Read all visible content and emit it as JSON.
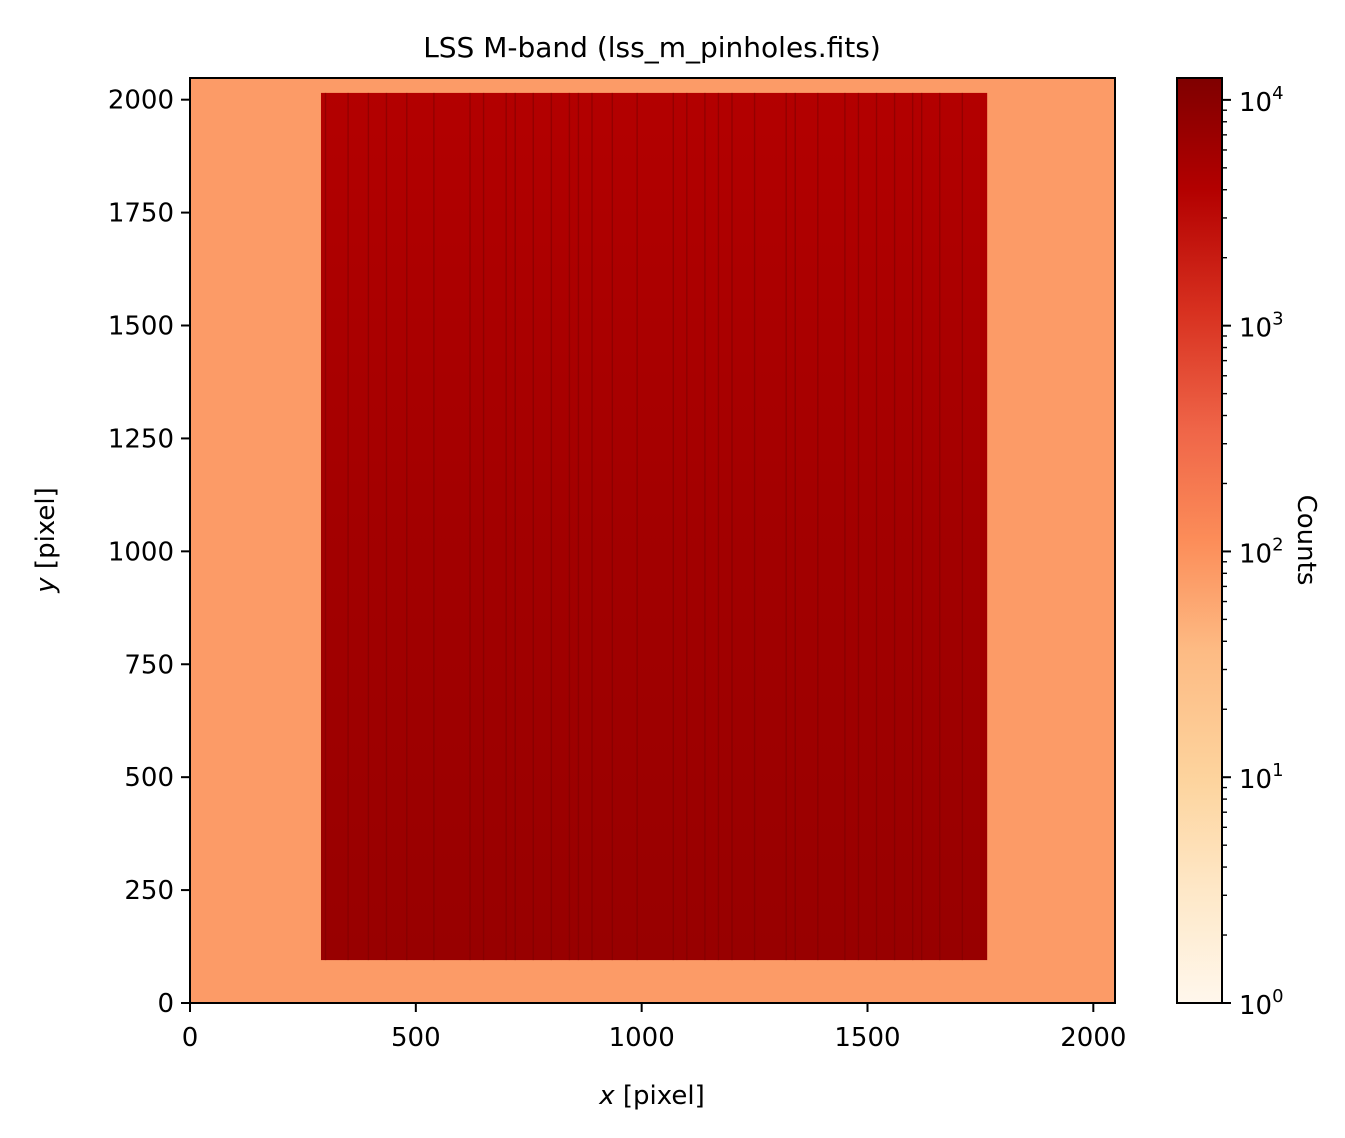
{
  "chart_data": {
    "type": "heatmap",
    "title": "LSS M-band (lss_m_pinholes.fits)",
    "xlabel_var": "x",
    "xlabel_unit": " [pixel]",
    "ylabel_var": "y",
    "ylabel_unit": " [pixel]",
    "xlim": [
      0,
      2048
    ],
    "ylim": [
      0,
      2048
    ],
    "x_ticks": [
      0,
      500,
      1000,
      1500,
      2000
    ],
    "y_ticks": [
      0,
      250,
      500,
      750,
      1000,
      1250,
      1500,
      1750,
      2000
    ],
    "grid": false,
    "colormap": "OrRd",
    "colorbar": {
      "label": "Counts",
      "scale": "log",
      "range": [
        1,
        12500
      ],
      "ticks": [
        {
          "base": "10",
          "exp": "0",
          "value": 1
        },
        {
          "base": "10",
          "exp": "1",
          "value": 10
        },
        {
          "base": "10",
          "exp": "2",
          "value": 100
        },
        {
          "base": "10",
          "exp": "3",
          "value": 1000
        },
        {
          "base": "10",
          "exp": "4",
          "value": 10000
        }
      ]
    },
    "background": {
      "counts": 50,
      "color": "#fc9b67"
    },
    "illuminated_region": {
      "x_range": [
        290,
        1765
      ],
      "y_range": [
        95,
        2015
      ],
      "counts": 5000,
      "color": "#9a0000"
    },
    "slit_line_x": [
      300,
      350,
      395,
      435,
      480,
      540,
      620,
      650,
      700,
      720,
      760,
      800,
      840,
      860,
      890,
      935,
      990,
      1070,
      1100,
      1140,
      1170,
      1200,
      1250,
      1320,
      1340,
      1390,
      1450,
      1480,
      1520,
      1560,
      1600,
      1620,
      1660,
      1710
    ]
  }
}
